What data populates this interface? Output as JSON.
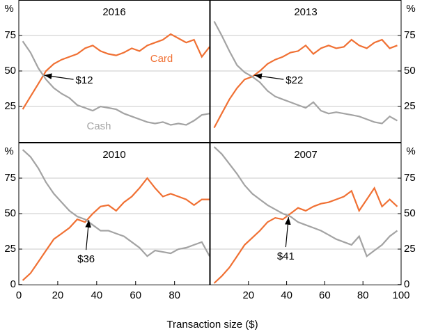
{
  "figure": {
    "xlabel": "Transaction size ($)"
  },
  "chart_data": [
    {
      "type": "line",
      "title": "2016",
      "y_unit": "%",
      "ytick_side": "left",
      "show_series_labels": true,
      "x": [
        2,
        6,
        10,
        14,
        18,
        22,
        26,
        30,
        34,
        38,
        42,
        46,
        50,
        54,
        58,
        62,
        66,
        70,
        74,
        78,
        82,
        86,
        90,
        94,
        98
      ],
      "series": [
        {
          "name": "Card",
          "color": "#f07033",
          "values": [
            23,
            32,
            41,
            50,
            55,
            58,
            60,
            62,
            66,
            68,
            64,
            62,
            61,
            63,
            66,
            64,
            68,
            70,
            72,
            76,
            73,
            70,
            72,
            60,
            67
          ]
        },
        {
          "name": "Cash",
          "color": "#a3a3a3",
          "values": [
            71,
            63,
            52,
            44,
            38,
            34,
            31,
            26,
            24,
            22,
            25,
            24,
            23,
            20,
            18,
            16,
            14,
            13,
            14,
            12,
            13,
            12,
            15,
            19,
            20
          ]
        }
      ],
      "annotation": {
        "text": "$12",
        "x": 12,
        "y": 47,
        "side": "right"
      },
      "xlim": [
        0,
        98
      ],
      "ylim": [
        0,
        100
      ],
      "yticks": [
        25,
        50,
        75
      ],
      "xticks": []
    },
    {
      "type": "line",
      "title": "2013",
      "y_unit": "%",
      "ytick_side": "right",
      "show_series_labels": false,
      "x": [
        2,
        6,
        10,
        14,
        18,
        22,
        26,
        30,
        34,
        38,
        42,
        46,
        50,
        54,
        58,
        62,
        66,
        70,
        74,
        78,
        82,
        86,
        90,
        94,
        98
      ],
      "series": [
        {
          "name": "Card",
          "color": "#f07033",
          "values": [
            10,
            20,
            30,
            38,
            44,
            46,
            50,
            55,
            58,
            60,
            63,
            64,
            68,
            62,
            66,
            68,
            66,
            67,
            72,
            68,
            66,
            70,
            72,
            66,
            68
          ]
        },
        {
          "name": "Cash",
          "color": "#a3a3a3",
          "values": [
            85,
            75,
            64,
            54,
            49,
            46,
            42,
            36,
            32,
            30,
            28,
            26,
            24,
            28,
            22,
            20,
            21,
            20,
            19,
            18,
            16,
            14,
            13,
            18,
            15
          ]
        }
      ],
      "annotation": {
        "text": "$22",
        "x": 22,
        "y": 47,
        "side": "right"
      },
      "xlim": [
        0,
        100
      ],
      "ylim": [
        0,
        100
      ],
      "yticks": [
        25,
        50,
        75
      ],
      "xticks": []
    },
    {
      "type": "line",
      "title": "2010",
      "y_unit": "%",
      "ytick_side": "left",
      "show_series_labels": false,
      "x": [
        2,
        6,
        10,
        14,
        18,
        22,
        26,
        30,
        34,
        38,
        42,
        46,
        50,
        54,
        58,
        62,
        66,
        70,
        74,
        78,
        82,
        86,
        90,
        94,
        98
      ],
      "series": [
        {
          "name": "Card",
          "color": "#f07033",
          "values": [
            3,
            8,
            16,
            24,
            32,
            36,
            40,
            46,
            44,
            50,
            55,
            56,
            52,
            58,
            62,
            68,
            75,
            68,
            62,
            64,
            62,
            60,
            56,
            60,
            60
          ]
        },
        {
          "name": "Cash",
          "color": "#a3a3a3",
          "values": [
            95,
            90,
            82,
            72,
            64,
            58,
            52,
            48,
            46,
            42,
            38,
            38,
            36,
            34,
            30,
            26,
            20,
            24,
            23,
            22,
            25,
            26,
            28,
            30,
            20
          ]
        }
      ],
      "annotation": {
        "text": "$36",
        "x": 36,
        "y": 47,
        "side": "below"
      },
      "xlim": [
        0,
        98
      ],
      "ylim": [
        0,
        100
      ],
      "yticks": [
        0,
        25,
        50,
        75
      ],
      "xticks": [
        0,
        20,
        40,
        60,
        80
      ]
    },
    {
      "type": "line",
      "title": "2007",
      "y_unit": "%",
      "ytick_side": "right",
      "show_series_labels": false,
      "x": [
        2,
        6,
        10,
        14,
        18,
        22,
        26,
        30,
        34,
        38,
        42,
        46,
        50,
        54,
        58,
        62,
        66,
        70,
        74,
        78,
        82,
        86,
        90,
        94,
        98
      ],
      "series": [
        {
          "name": "Card",
          "color": "#f07033",
          "values": [
            1,
            6,
            12,
            20,
            28,
            33,
            38,
            44,
            47,
            46,
            50,
            54,
            52,
            55,
            57,
            58,
            60,
            62,
            66,
            52,
            60,
            68,
            55,
            60,
            55
          ]
        },
        {
          "name": "Cash",
          "color": "#a3a3a3",
          "values": [
            97,
            92,
            85,
            78,
            70,
            64,
            60,
            56,
            53,
            50,
            48,
            44,
            42,
            40,
            38,
            35,
            32,
            30,
            28,
            34,
            20,
            24,
            28,
            34,
            38
          ]
        }
      ],
      "annotation": {
        "text": "$41",
        "x": 41,
        "y": 49,
        "side": "below"
      },
      "xlim": [
        0,
        100
      ],
      "ylim": [
        0,
        100
      ],
      "yticks": [
        0,
        25,
        50,
        75
      ],
      "xticks": [
        20,
        40,
        60,
        80,
        100
      ]
    }
  ]
}
